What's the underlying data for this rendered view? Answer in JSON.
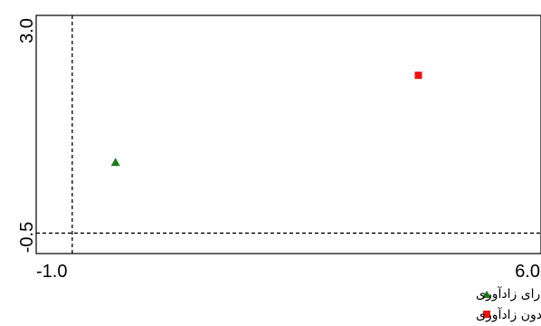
{
  "chart_data": {
    "type": "scatter",
    "title": "",
    "xlabel": "",
    "ylabel": "",
    "xlim": [
      -1.0,
      6.0
    ],
    "ylim": [
      -0.5,
      3.0
    ],
    "x_tick_labels": [
      "-1.0",
      "6.0"
    ],
    "y_tick_labels": [
      "-0.5",
      "3.0"
    ],
    "reference_lines": {
      "x": -0.5,
      "y": -0.2
    },
    "grid": false,
    "legend_position": "bottom-right",
    "series": [
      {
        "name": "لکه های دارای زادآوری",
        "marker": "triangle",
        "color": "#1a7a1a",
        "points": [
          {
            "x": 0.1,
            "y": 0.84
          }
        ]
      },
      {
        "name": "لکه های بدون زادآوری",
        "marker": "square",
        "color": "#ee1111",
        "points": [
          {
            "x": 4.3,
            "y": 2.12
          }
        ]
      }
    ]
  }
}
